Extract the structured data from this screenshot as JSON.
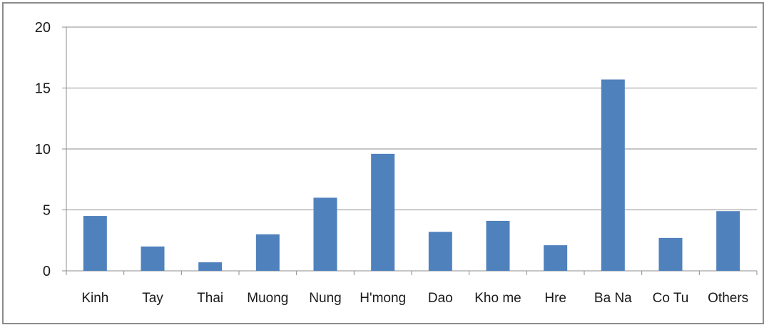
{
  "chart_data": {
    "type": "bar",
    "categories": [
      "Kinh",
      "Tay",
      "Thai",
      "Muong",
      "Nung",
      "H'mong",
      "Dao",
      "Kho me",
      "Hre",
      "Ba Na",
      "Co Tu",
      "Others"
    ],
    "values": [
      4.5,
      2.0,
      0.7,
      3.0,
      6.0,
      9.6,
      3.2,
      4.1,
      2.1,
      15.7,
      2.7,
      4.9
    ],
    "title": "",
    "xlabel": "",
    "ylabel": "",
    "ylim": [
      0,
      20
    ],
    "yticks": [
      0,
      5,
      10,
      15,
      20
    ],
    "ytick_labels": [
      "0",
      "5",
      "10",
      "15",
      "20"
    ],
    "grid": true,
    "legend": "none",
    "colors": {
      "bar": "#4f81bd",
      "grid": "#8c8c8c",
      "axis": "#8c8c8c",
      "frame": "#8c8c8c"
    }
  }
}
